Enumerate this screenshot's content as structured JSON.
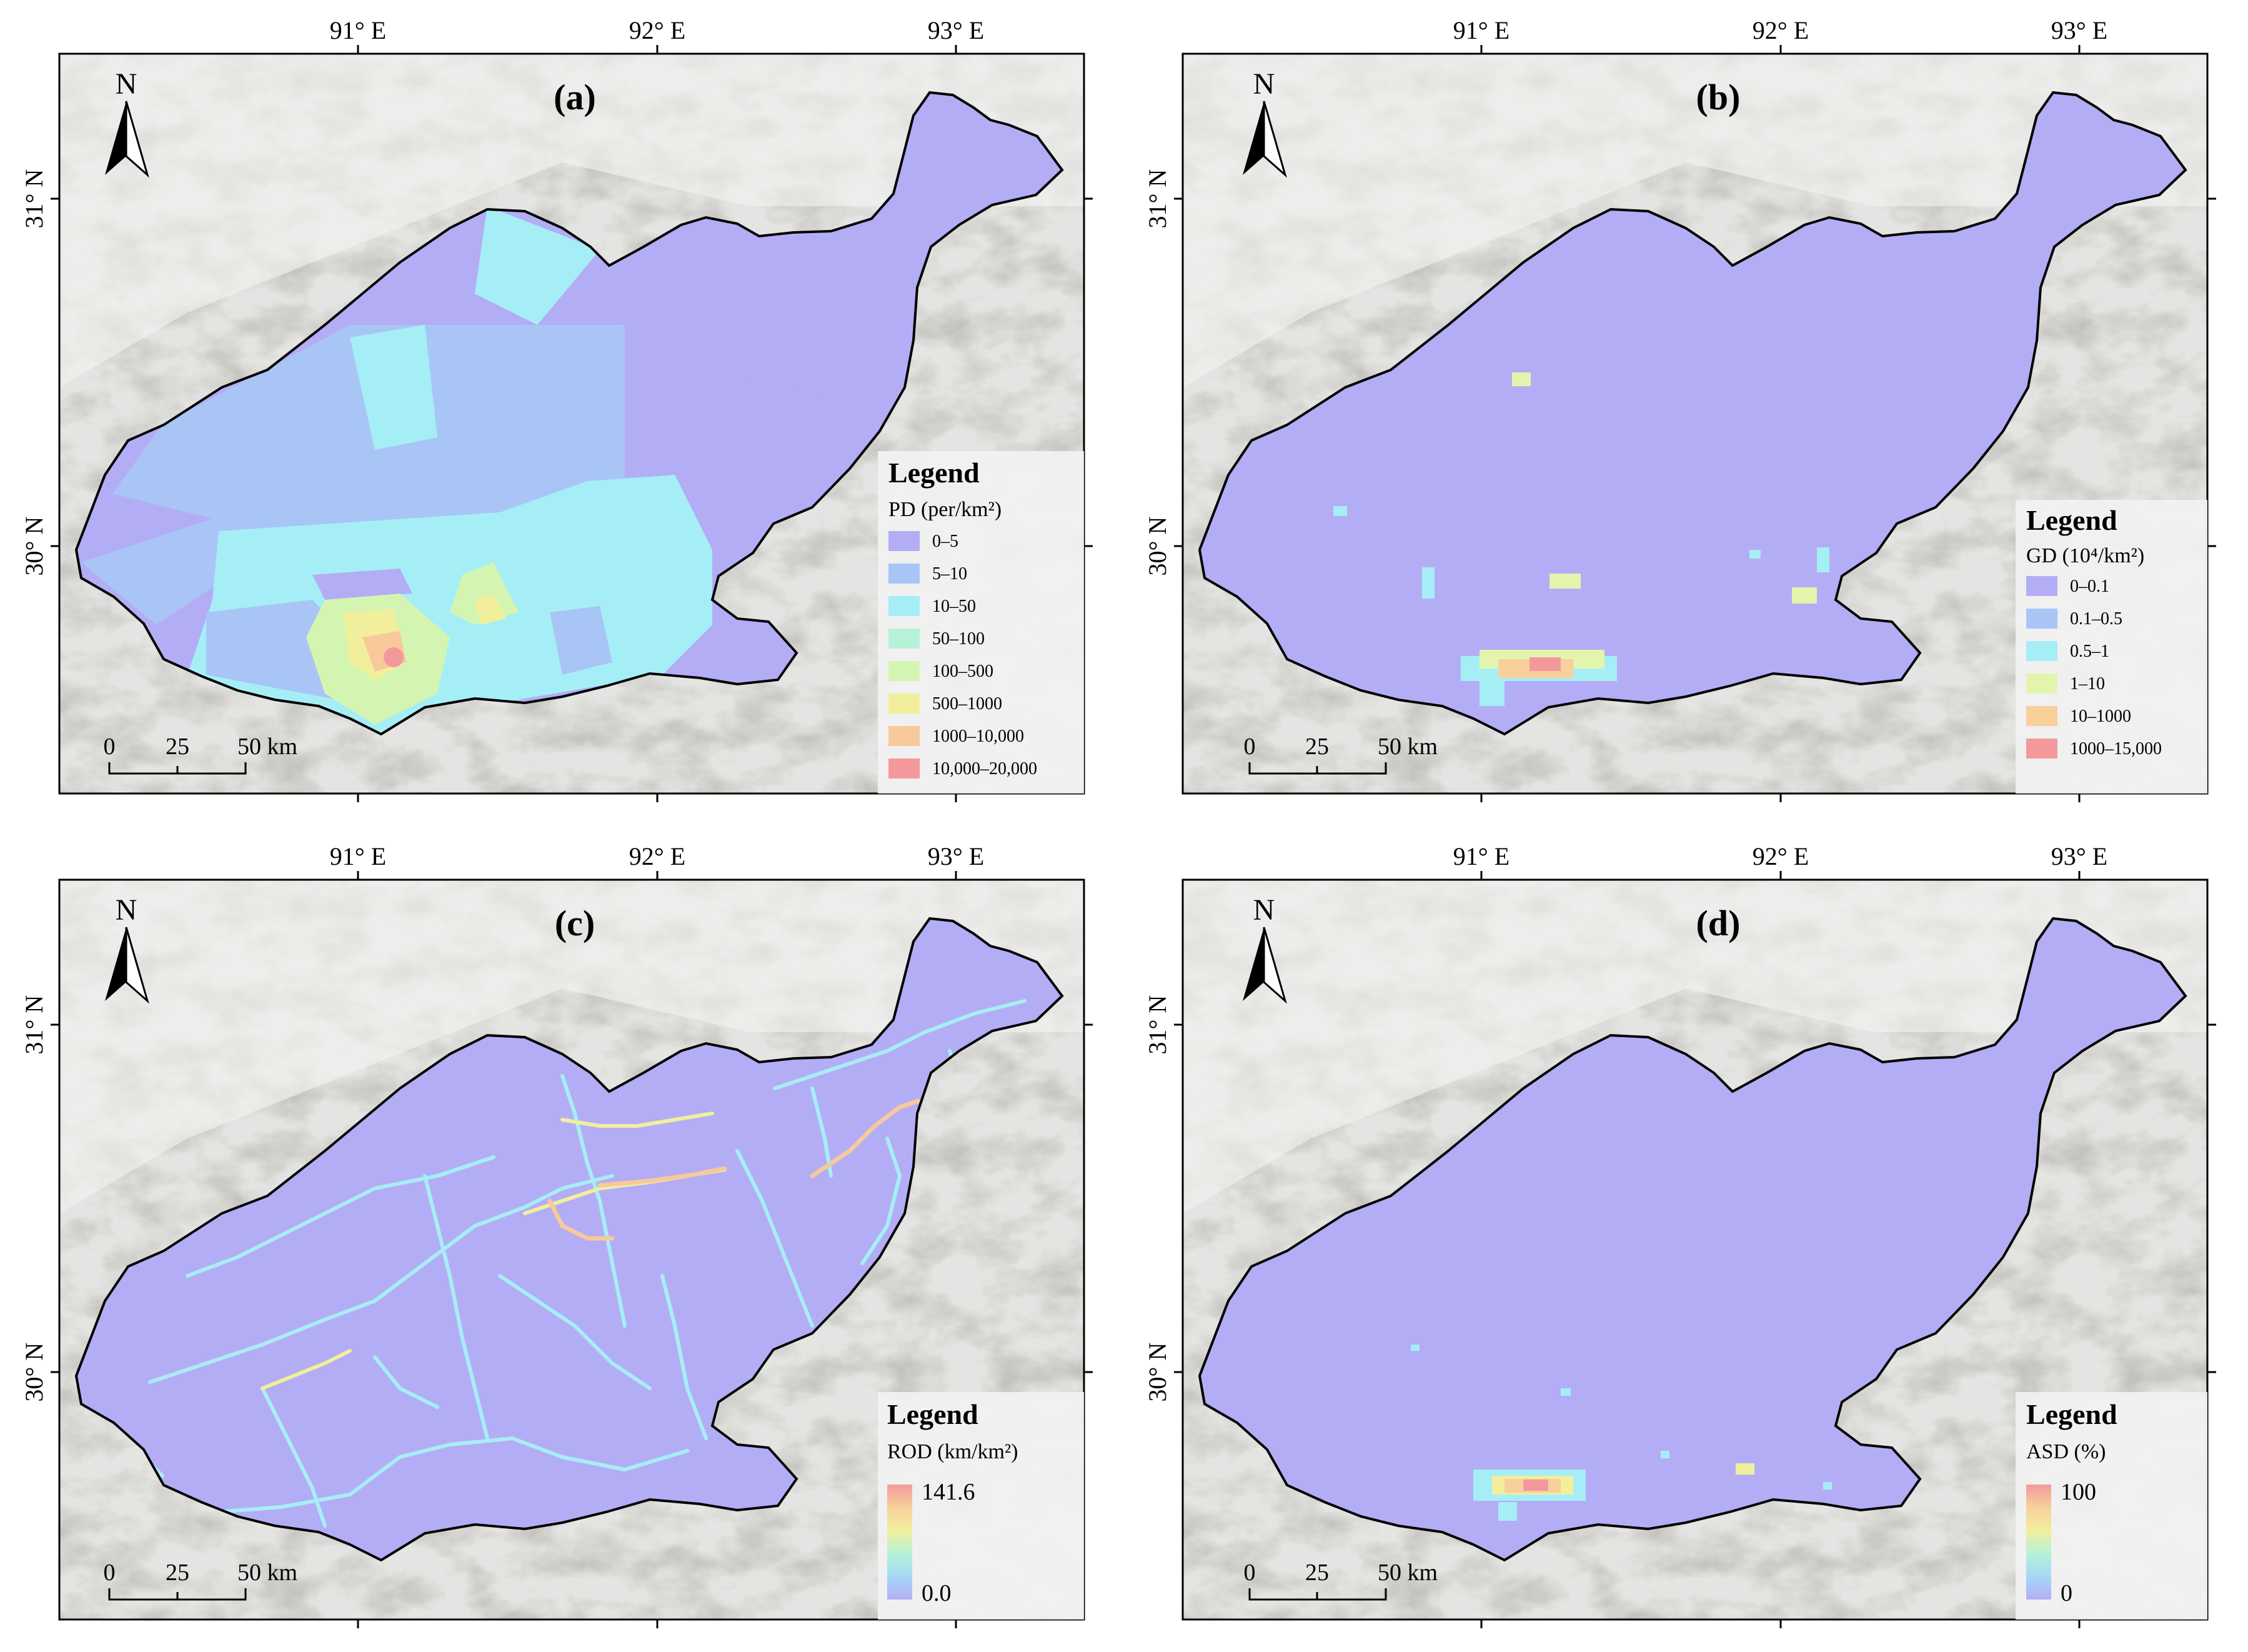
{
  "figure": {
    "domain_hint": "thematic maps of a river basin in four panels",
    "colors": {
      "background_relief": "#e4e4e2",
      "relief_dark": "#b9b7b1",
      "basin_base": "#b3adf6",
      "boundary": "#000000",
      "legend_bg": "#f2f2f2"
    }
  },
  "axes": {
    "top_ticks": [
      "91° E",
      "92° E",
      "93° E"
    ],
    "left_ticks": [
      "31° N",
      "30° N"
    ]
  },
  "north_arrow": {
    "label": "N",
    "icon": "north-arrow-icon"
  },
  "scale_bar": {
    "labels": [
      "0",
      "25",
      "50 km"
    ]
  },
  "panels": [
    {
      "id": "a",
      "letter": "(a)",
      "legend": {
        "title": "Legend",
        "subtitle": "PD (per/km²)",
        "type": "classes",
        "classes": [
          {
            "label": "0–5",
            "color": "#b3adf6"
          },
          {
            "label": "5–10",
            "color": "#a9c5f6"
          },
          {
            "label": "10–50",
            "color": "#a6eef6"
          },
          {
            "label": "50–100",
            "color": "#b5f2d8"
          },
          {
            "label": "100–500",
            "color": "#d4f5b1"
          },
          {
            "label": "500–1000",
            "color": "#f1ef9c"
          },
          {
            "label": "1000–10,000",
            "color": "#f7c99b"
          },
          {
            "label": "10,000–20,000",
            "color": "#f4999b"
          }
        ]
      }
    },
    {
      "id": "b",
      "letter": "(b)",
      "legend": {
        "title": "Legend",
        "subtitle": "GD (10⁴/km²)",
        "type": "classes",
        "classes": [
          {
            "label": "0–0.1",
            "color": "#b3adf6"
          },
          {
            "label": "0.1–0.5",
            "color": "#a9c5f6"
          },
          {
            "label": "0.5–1",
            "color": "#a6eef6"
          },
          {
            "label": "1–10",
            "color": "#e3f5ad"
          },
          {
            "label": "10–1000",
            "color": "#f7d09b"
          },
          {
            "label": "1000–15,000",
            "color": "#f4999b"
          }
        ]
      }
    },
    {
      "id": "c",
      "letter": "(c)",
      "legend": {
        "title": "Legend",
        "subtitle": "ROD (km/km²)",
        "type": "ramp",
        "max_label": "141.6",
        "min_label": "0.0"
      }
    },
    {
      "id": "d",
      "letter": "(d)",
      "legend": {
        "title": "Legend",
        "subtitle": "ASD (%)",
        "type": "ramp",
        "max_label": "100",
        "min_label": "0"
      }
    }
  ]
}
